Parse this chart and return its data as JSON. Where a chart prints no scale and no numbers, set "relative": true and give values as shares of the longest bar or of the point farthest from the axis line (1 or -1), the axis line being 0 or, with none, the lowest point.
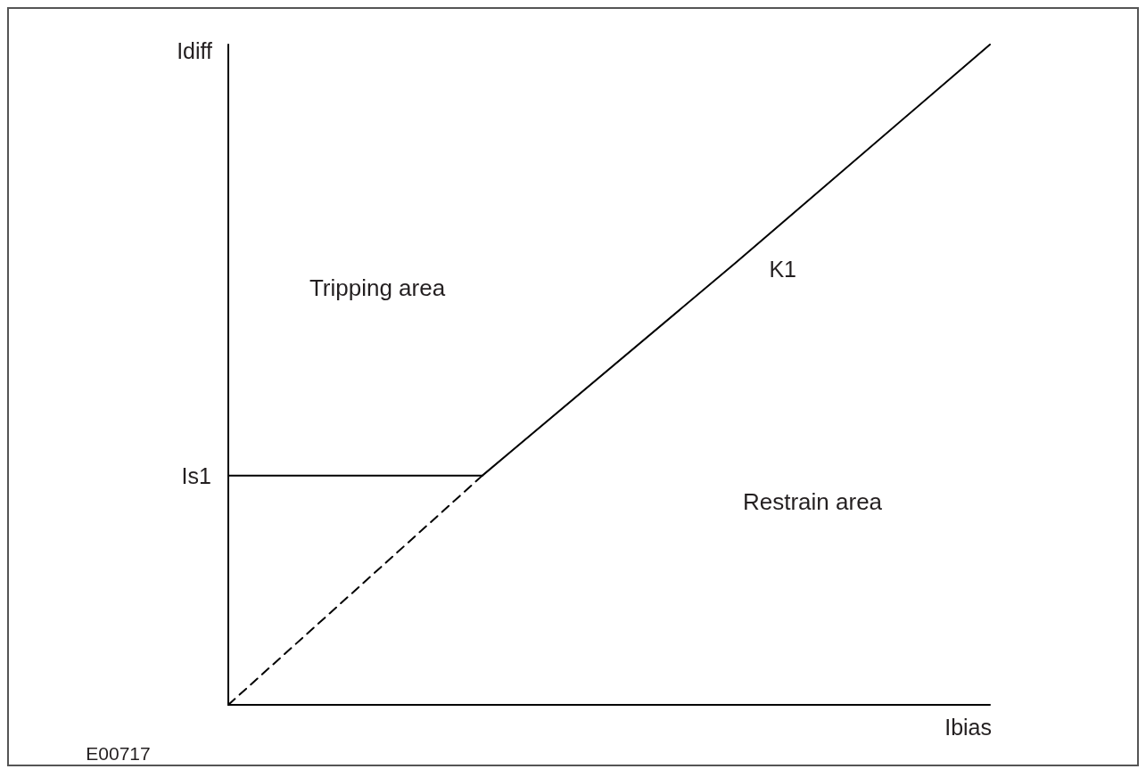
{
  "chart_data": {
    "type": "line",
    "relative": true,
    "xlabel": "Ibias",
    "ylabel": "Idiff",
    "annotations": [
      "K1",
      "Tripping area",
      "Is1",
      "Restrain area",
      "E00717"
    ],
    "categories": [
      null,
      null,
      null,
      null
    ],
    "series": [
      {
        "color": "#000000",
        "values": [
          0.347,
          0.347,
          0.67,
          1
        ],
        "line_style": "solid"
      },
      {
        "color": "#000000",
        "values": [
          0,
          0.347,
          null,
          null
        ],
        "line_style": "dashed"
      }
    ],
    "marker": "none"
  }
}
